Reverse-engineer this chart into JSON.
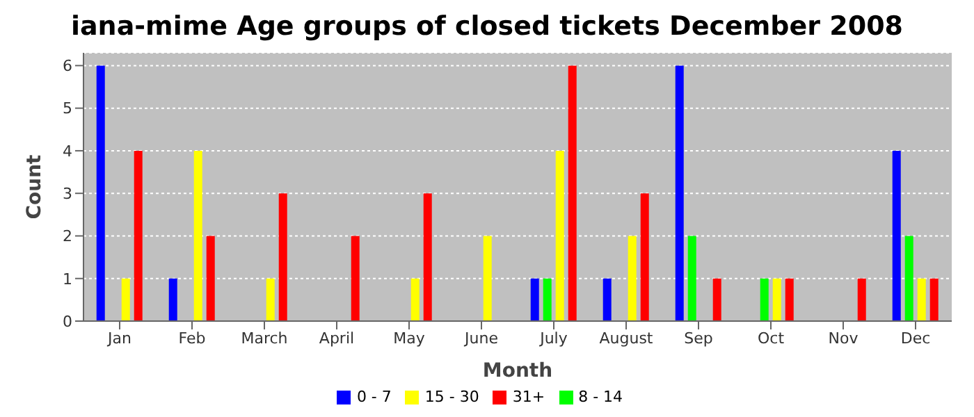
{
  "chart_data": {
    "type": "bar",
    "title": "iana-mime Age groups of closed tickets December 2008",
    "xlabel": "Month",
    "ylabel": "Count",
    "categories": [
      "Jan",
      "Feb",
      "March",
      "April",
      "May",
      "June",
      "July",
      "August",
      "Sep",
      "Oct",
      "Nov",
      "Dec"
    ],
    "series": [
      {
        "name": "0 - 7",
        "color": "#0000ff",
        "values": [
          6,
          1,
          0,
          0,
          0,
          0,
          1,
          1,
          6,
          0,
          0,
          4
        ]
      },
      {
        "name": "8 - 14",
        "color": "#00ff00",
        "values": [
          0,
          0,
          0,
          0,
          0,
          0,
          1,
          0,
          2,
          1,
          0,
          2
        ]
      },
      {
        "name": "15 - 30",
        "color": "#ffff00",
        "values": [
          1,
          4,
          1,
          0,
          1,
          2,
          4,
          2,
          0,
          1,
          0,
          1
        ]
      },
      {
        "name": "31+",
        "color": "#ff0000",
        "values": [
          4,
          2,
          3,
          2,
          3,
          0,
          6,
          3,
          1,
          1,
          1,
          1
        ]
      }
    ],
    "ylim": [
      0,
      6.3
    ],
    "yticks": [
      0,
      1,
      2,
      3,
      4,
      5,
      6
    ],
    "grid": "y",
    "legend": "bottom"
  }
}
